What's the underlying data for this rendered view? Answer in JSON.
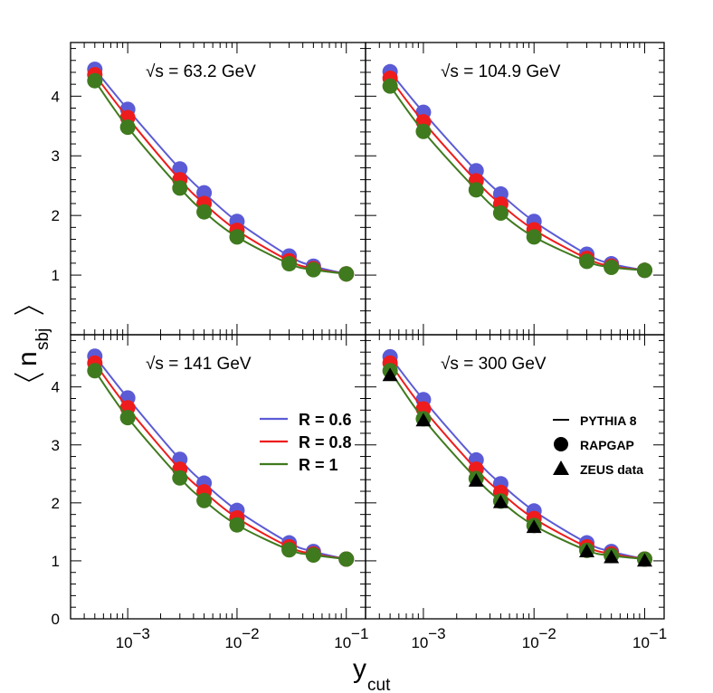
{
  "chart_data": {
    "type": "line+scatter",
    "xlabel": {
      "main": "y",
      "sub": "cut"
    },
    "ylabel": {
      "main": "n",
      "sub": "sbj"
    },
    "x_scale": "log",
    "xlim": [
      0.0003,
      0.15
    ],
    "ylim": [
      0,
      4.9
    ],
    "x_tick_labels": [
      {
        "value": 0.001,
        "base": "10",
        "exp": "−3"
      },
      {
        "value": 0.01,
        "base": "10",
        "exp": "−2"
      },
      {
        "value": 0.1,
        "base": "10",
        "exp": "−1"
      }
    ],
    "y_ticks_top": [
      1,
      2,
      3,
      4
    ],
    "y_ticks_bottom": [
      0,
      1,
      2,
      3,
      4
    ],
    "x": [
      0.0005,
      0.001,
      0.003,
      0.005,
      0.01,
      0.03,
      0.05,
      0.1
    ],
    "panels": [
      {
        "title": "√s = 63.2 GeV",
        "series": [
          {
            "name": "R = 0.6",
            "color": "#5b5bd6",
            "values": [
              4.45,
              3.78,
              2.78,
              2.38,
              1.9,
              1.32,
              1.15,
              1.02
            ]
          },
          {
            "name": "R = 0.8",
            "color": "#ee1c1c",
            "values": [
              4.36,
              3.64,
              2.6,
              2.2,
              1.75,
              1.24,
              1.11,
              1.02
            ]
          },
          {
            "name": "R = 1",
            "color": "#3f7a1e",
            "values": [
              4.26,
              3.48,
              2.46,
              2.06,
              1.64,
              1.19,
              1.09,
              1.02
            ]
          }
        ]
      },
      {
        "title": "√s = 104.9 GeV",
        "series": [
          {
            "name": "R = 0.6",
            "color": "#5b5bd6",
            "values": [
              4.41,
              3.73,
              2.75,
              2.36,
              1.9,
              1.35,
              1.19,
              1.08
            ]
          },
          {
            "name": "R = 0.8",
            "color": "#ee1c1c",
            "values": [
              4.3,
              3.57,
              2.58,
              2.19,
              1.76,
              1.28,
              1.15,
              1.08
            ]
          },
          {
            "name": "R = 1",
            "color": "#3f7a1e",
            "values": [
              4.17,
              3.41,
              2.43,
              2.04,
              1.64,
              1.23,
              1.13,
              1.08
            ]
          }
        ]
      },
      {
        "title": "√s = 141 GeV",
        "series": [
          {
            "name": "R = 0.6",
            "color": "#5b5bd6",
            "values": [
              4.53,
              3.81,
              2.75,
              2.34,
              1.87,
              1.31,
              1.16,
              1.03
            ]
          },
          {
            "name": "R = 0.8",
            "color": "#ee1c1c",
            "values": [
              4.41,
              3.64,
              2.58,
              2.19,
              1.74,
              1.24,
              1.12,
              1.03
            ]
          },
          {
            "name": "R = 1",
            "color": "#3f7a1e",
            "values": [
              4.28,
              3.47,
              2.43,
              2.04,
              1.62,
              1.19,
              1.1,
              1.03
            ]
          }
        ]
      },
      {
        "title": "√s = 300 GeV",
        "series": [
          {
            "name": "R = 0.6",
            "color": "#5b5bd6",
            "values": [
              4.52,
              3.78,
              2.74,
              2.33,
              1.86,
              1.31,
              1.16,
              1.03
            ]
          },
          {
            "name": "R = 0.8",
            "color": "#ee1c1c",
            "values": [
              4.41,
              3.62,
              2.58,
              2.18,
              1.73,
              1.24,
              1.12,
              1.03
            ]
          },
          {
            "name": "R = 1",
            "color": "#3f7a1e",
            "values": [
              4.28,
              3.45,
              2.42,
              2.03,
              1.61,
              1.18,
              1.09,
              1.03
            ]
          },
          {
            "name": "ZEUS data",
            "color": "#000000",
            "marker": "triangle",
            "values": [
              4.2,
              3.42,
              2.38,
              2.01,
              1.58,
              1.16,
              1.06,
              1.0
            ]
          }
        ]
      }
    ],
    "legend_R": [
      {
        "label": "R = 0.6",
        "color": "#5b5bd6"
      },
      {
        "label": "R = 0.8",
        "color": "#ee1c1c"
      },
      {
        "label": "R = 1",
        "color": "#3f7a1e"
      }
    ],
    "legend_models": [
      {
        "label": "PYTHIA 8",
        "symbol": "line"
      },
      {
        "label": "RAPGAP",
        "symbol": "circle"
      },
      {
        "label": "ZEUS data",
        "symbol": "triangle"
      }
    ]
  }
}
